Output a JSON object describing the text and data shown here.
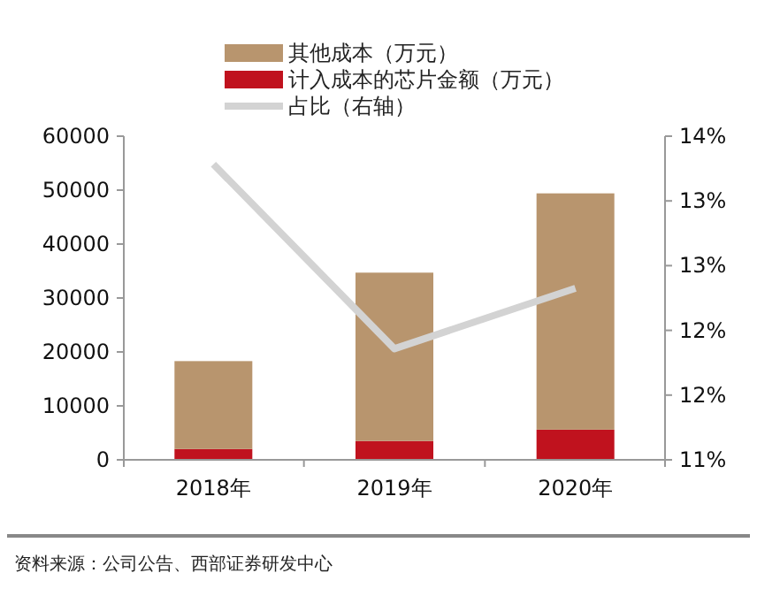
{
  "chart_data": {
    "type": "bar",
    "stacked": true,
    "categories": [
      "2018年",
      "2019年",
      "2020年"
    ],
    "series": [
      {
        "name": "计入成本的芯片金额（万元）",
        "color": "#c0121e",
        "values": [
          2000,
          3500,
          5600
        ]
      },
      {
        "name": "其他成本（万元）",
        "color": "#b8956e",
        "values": [
          16300,
          31200,
          43800
        ]
      },
      {
        "name": "占比（右轴）",
        "type": "line",
        "axis": "y2",
        "color": "#d3d3d3",
        "values": [
          13.74,
          12.03,
          12.59
        ]
      }
    ],
    "ylim": [
      0,
      60000
    ],
    "yticks": [
      0,
      10000,
      20000,
      30000,
      40000,
      50000,
      60000
    ],
    "y2lim": [
      11,
      14
    ],
    "y2ticks": [
      {
        "value": 11,
        "label": "11%"
      },
      {
        "value": 11.6,
        "label": "12%"
      },
      {
        "value": 12.2,
        "label": "12%"
      },
      {
        "value": 12.8,
        "label": "13%"
      },
      {
        "value": 13.4,
        "label": "13%"
      },
      {
        "value": 14,
        "label": "14%"
      }
    ],
    "legend": "top",
    "grid": false,
    "annotations": [
      "资料来源：公司公告、西部证券研发中心"
    ]
  }
}
